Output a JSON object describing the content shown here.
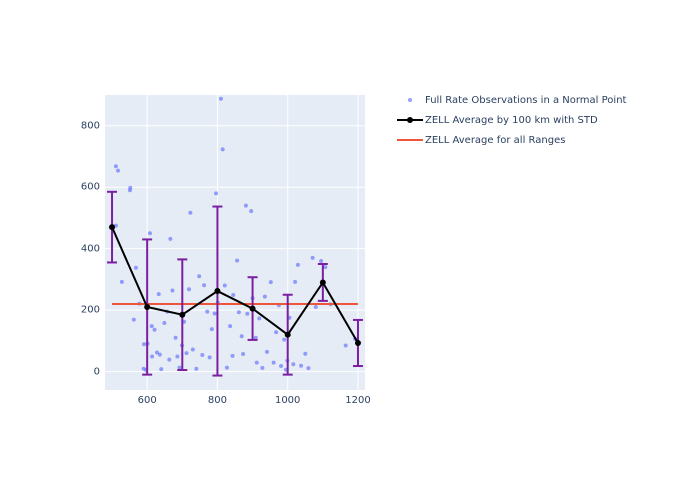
{
  "chart": {
    "type": "scatter_with_line_and_errorbars",
    "background_color": "#ffffff",
    "plot_background_color": "#e5ecf6",
    "grid_color": "#ffffff",
    "text_color": "#2a3f5f",
    "tick_fontsize": 10,
    "legend_fontsize": 10,
    "xlim": [
      480,
      1220
    ],
    "ylim": [
      -60,
      900
    ],
    "x_ticks": [
      600,
      800,
      1000,
      1200
    ],
    "x_tick_labels": [
      "600",
      "800",
      "1000",
      "1200"
    ],
    "y_ticks": [
      0,
      200,
      400,
      600,
      800
    ],
    "y_tick_labels": [
      "0",
      "200",
      "400",
      "600",
      "800"
    ],
    "legend": {
      "position": "right",
      "items": [
        {
          "label": "Full Rate Observations in a Normal Point",
          "type": "marker",
          "color": "#636efa",
          "marker_size": 4
        },
        {
          "label": "ZELL Average by 100 km with STD",
          "type": "line_marker",
          "color": "#000000",
          "marker_size": 6,
          "line_width": 2
        },
        {
          "label": "ZELL Average for all Ranges",
          "type": "line",
          "color": "#ef553b",
          "line_width": 2
        }
      ]
    },
    "scatter": {
      "color": "#636efa",
      "marker_size": 4,
      "opacity": 0.65,
      "points": [
        [
          511,
          475
        ],
        [
          511,
          668
        ],
        [
          517,
          654
        ],
        [
          528,
          292
        ],
        [
          551,
          590
        ],
        [
          552,
          598
        ],
        [
          562,
          169
        ],
        [
          568,
          338
        ],
        [
          578,
          221
        ],
        [
          590,
          9
        ],
        [
          591,
          89
        ],
        [
          597,
          5
        ],
        [
          601,
          91
        ],
        [
          608,
          450
        ],
        [
          613,
          148
        ],
        [
          614,
          49
        ],
        [
          621,
          136
        ],
        [
          628,
          62
        ],
        [
          633,
          252
        ],
        [
          636,
          55
        ],
        [
          640,
          8
        ],
        [
          649,
          158
        ],
        [
          657,
          195
        ],
        [
          663,
          39
        ],
        [
          666,
          432
        ],
        [
          672,
          264
        ],
        [
          681,
          110
        ],
        [
          686,
          49
        ],
        [
          692,
          13
        ],
        [
          699,
          85
        ],
        [
          705,
          162
        ],
        [
          712,
          60
        ],
        [
          719,
          268
        ],
        [
          723,
          517
        ],
        [
          730,
          72
        ],
        [
          740,
          9
        ],
        [
          748,
          310
        ],
        [
          757,
          54
        ],
        [
          762,
          281
        ],
        [
          771,
          195
        ],
        [
          778,
          46
        ],
        [
          784,
          138
        ],
        [
          792,
          189
        ],
        [
          796,
          580
        ],
        [
          801,
          224
        ],
        [
          810,
          888
        ],
        [
          815,
          723
        ],
        [
          821,
          280
        ],
        [
          827,
          13
        ],
        [
          836,
          148
        ],
        [
          843,
          51
        ],
        [
          845,
          249
        ],
        [
          856,
          361
        ],
        [
          861,
          193
        ],
        [
          869,
          115
        ],
        [
          873,
          57
        ],
        [
          881,
          540
        ],
        [
          885,
          188
        ],
        [
          896,
          522
        ],
        [
          900,
          239
        ],
        [
          909,
          110
        ],
        [
          912,
          29
        ],
        [
          919,
          173
        ],
        [
          928,
          12
        ],
        [
          935,
          244
        ],
        [
          941,
          64
        ],
        [
          952,
          291
        ],
        [
          960,
          29
        ],
        [
          967,
          128
        ],
        [
          975,
          216
        ],
        [
          981,
          18
        ],
        [
          990,
          104
        ],
        [
          995,
          6
        ],
        [
          999,
          35
        ],
        [
          1005,
          175
        ],
        [
          1016,
          24
        ],
        [
          1021,
          292
        ],
        [
          1029,
          347
        ],
        [
          1038,
          19
        ],
        [
          1050,
          58
        ],
        [
          1059,
          11
        ],
        [
          1071,
          370
        ],
        [
          1080,
          210
        ],
        [
          1095,
          360
        ],
        [
          1107,
          340
        ],
        [
          1122,
          219
        ],
        [
          1165,
          85
        ],
        [
          1192,
          106
        ]
      ]
    },
    "average_line": {
      "color": "#000000",
      "line_width": 2,
      "marker_size": 6,
      "errorbar_color": "#7b1fa2",
      "errorbar_cap_width": 10,
      "errorbar_line_width": 2,
      "points": [
        {
          "x": 500,
          "y": 470,
          "err": 115
        },
        {
          "x": 600,
          "y": 210,
          "err": 220
        },
        {
          "x": 700,
          "y": 185,
          "err": 180
        },
        {
          "x": 800,
          "y": 262,
          "err": 275
        },
        {
          "x": 900,
          "y": 205,
          "err": 102
        },
        {
          "x": 1000,
          "y": 120,
          "err": 130
        },
        {
          "x": 1100,
          "y": 290,
          "err": 60
        },
        {
          "x": 1200,
          "y": 93,
          "err": 75
        }
      ]
    },
    "overall_average": {
      "color": "#ef553b",
      "line_width": 2,
      "x_range": [
        500,
        1200
      ],
      "y": 220
    }
  }
}
